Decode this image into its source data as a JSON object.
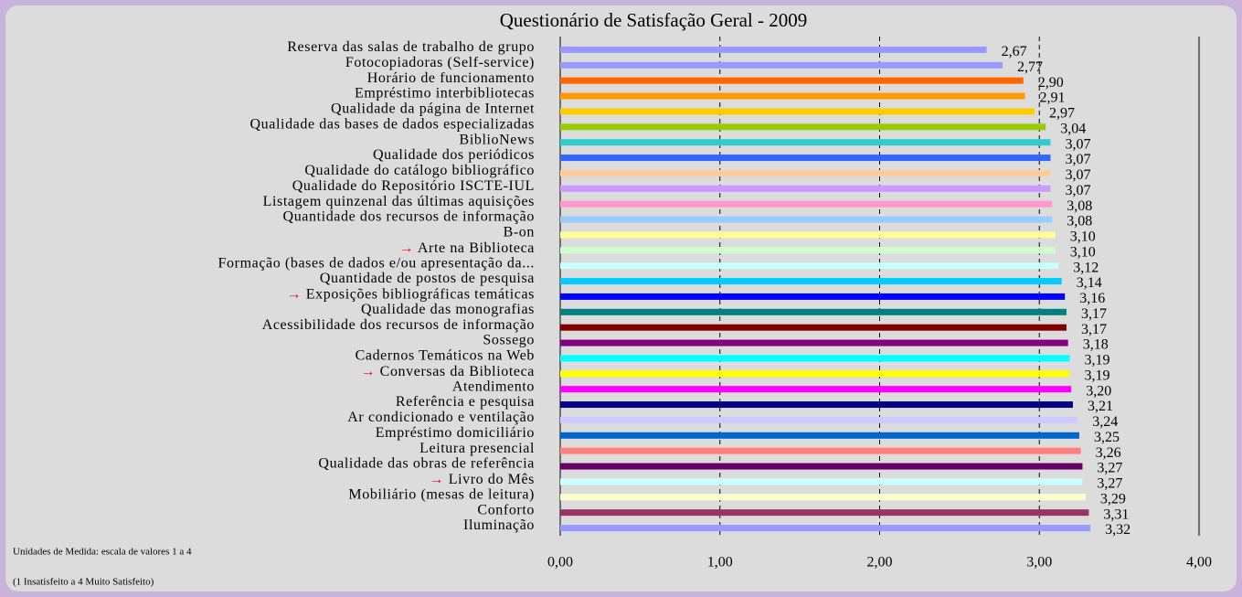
{
  "chart_data": {
    "type": "bar",
    "orientation": "horizontal",
    "title": "Questionário de Satisfação Geral - 2009",
    "notes": [
      "Unidades de Medida: escala de valores 1 a 4",
      "(1 Insatisfeito a 4 Muito Satisfeito)"
    ],
    "categories": [
      "Reserva das salas de trabalho de grupo",
      "Fotocopiadoras (Self-service)",
      "Horário de funcionamento",
      "Empréstimo interbibliotecas",
      "Qualidade da página de Internet",
      "Qualidade das bases de dados especializadas",
      "BiblioNews",
      "Qualidade dos periódicos",
      "Qualidade do catálogo bibliográfico",
      "Qualidade do Repositório ISCTE-IUL",
      "Listagem quinzenal das últimas aquisições",
      "Quantidade dos recursos de informação",
      "B-on",
      "→ Arte na Biblioteca",
      "Formação (bases de dados e/ou apresentação da...",
      "Quantidade de postos de pesquisa",
      "→ Exposições bibliográficas temáticas",
      "Qualidade das monografias",
      "Acessibilidade dos recursos de informação",
      "Sossego",
      "Cadernos Temáticos na Web",
      "→ Conversas da Biblioteca",
      "Atendimento",
      "Referência e pesquisa",
      "Ar condicionado e ventilação",
      "Empréstimo domiciliário",
      "Leitura presencial",
      "Qualidade das obras de referência",
      "→ Livro do Mês",
      "Mobiliário (mesas de leitura)",
      "Conforto",
      "Iluminação"
    ],
    "values": [
      2.67,
      2.77,
      2.9,
      2.91,
      2.97,
      3.04,
      3.07,
      3.07,
      3.07,
      3.07,
      3.08,
      3.08,
      3.1,
      3.1,
      3.12,
      3.14,
      3.16,
      3.17,
      3.17,
      3.18,
      3.19,
      3.19,
      3.2,
      3.21,
      3.24,
      3.25,
      3.26,
      3.27,
      3.27,
      3.29,
      3.31,
      3.32
    ],
    "value_labels": [
      "2,67",
      "2,77",
      "2,90",
      "2,91",
      "2,97",
      "3,04",
      "3,07",
      "3,07",
      "3,07",
      "3,07",
      "3,08",
      "3,08",
      "3,10",
      "3,10",
      "3,12",
      "3,14",
      "3,16",
      "3,17",
      "3,17",
      "3,18",
      "3,19",
      "3,19",
      "3,20",
      "3,21",
      "3,24",
      "3,25",
      "3,26",
      "3,27",
      "3,27",
      "3,29",
      "3,31",
      "3,32"
    ],
    "colors": [
      "#9999ff",
      "#9999ff",
      "#ff6600",
      "#ff9900",
      "#ffcc00",
      "#99cc00",
      "#33cccc",
      "#3366ff",
      "#ffcc99",
      "#cc99ff",
      "#ff99cc",
      "#99ccff",
      "#ffff99",
      "#ccffcc",
      "#ccffff",
      "#00ccff",
      "#0000ff",
      "#008080",
      "#800000",
      "#800080",
      "#00ffff",
      "#ffff00",
      "#ff00ff",
      "#000080",
      "#ccccff",
      "#0066cc",
      "#ff8080",
      "#660066",
      "#ccffff",
      "#ffffcc",
      "#993366",
      "#9999ff"
    ],
    "xlim": [
      0,
      4
    ],
    "xticks": [
      {
        "value": 0,
        "label": "0,00"
      },
      {
        "value": 1,
        "label": "1,00"
      },
      {
        "value": 2,
        "label": "2,00"
      },
      {
        "value": 3,
        "label": "3,00"
      },
      {
        "value": 4,
        "label": "4,00"
      }
    ],
    "grid": true
  }
}
